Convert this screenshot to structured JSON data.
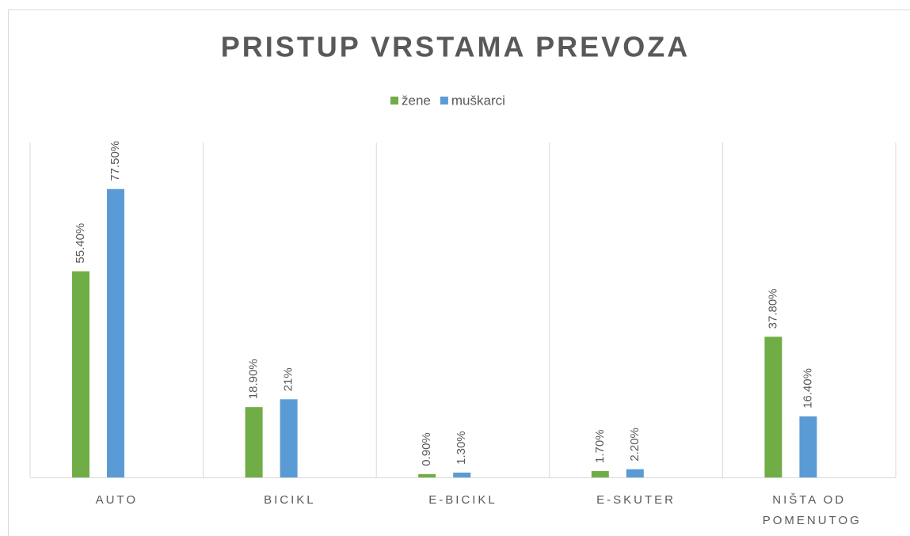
{
  "chart_data": {
    "type": "bar",
    "title": "PRISTUP VRSTAMA PREVOZA",
    "categories": [
      "AUTO",
      "BICIKL",
      "E-BICIKL",
      "E-SKUTER",
      "NIŠTA OD POMENUTOG"
    ],
    "series": [
      {
        "name": "žene",
        "color": "#70ad47",
        "values": [
          55.4,
          18.9,
          0.9,
          1.7,
          37.8
        ],
        "value_labels": [
          "55.40%",
          "18.90%",
          "0.90%",
          "1.70%",
          "37.80%"
        ]
      },
      {
        "name": "muškarci",
        "color": "#5b9bd5",
        "values": [
          77.5,
          21,
          1.3,
          2.2,
          16.4
        ],
        "value_labels": [
          "77.50%",
          "21%",
          "1.30%",
          "2.20%",
          "16.40%"
        ]
      }
    ],
    "ylim": [
      0,
      90
    ],
    "legend": "top"
  }
}
